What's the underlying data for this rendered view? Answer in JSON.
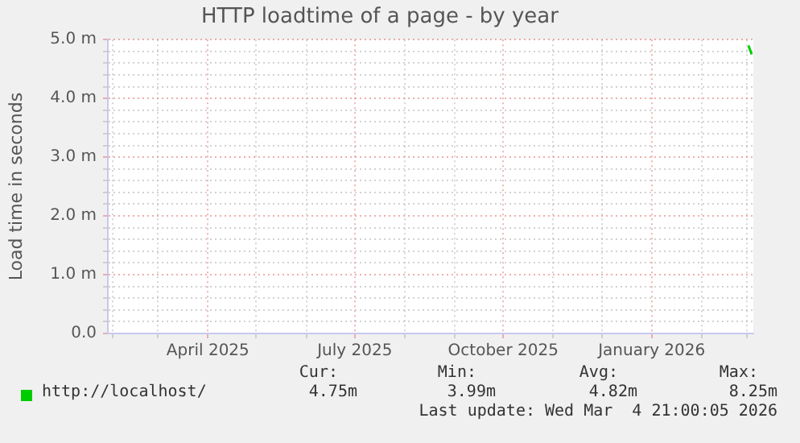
{
  "chart_data": {
    "type": "line",
    "title": "HTTP loadtime of a page - by year",
    "ylabel": "Load time in seconds",
    "x": [
      "2026-03-02",
      "2026-03-04"
    ],
    "series": [
      {
        "name": "http://localhost/",
        "color": "#00cc00",
        "values": [
          4.9,
          4.75
        ]
      }
    ],
    "xlim": [
      "2025-01-29",
      "2026-03-05"
    ],
    "xticks": [
      {
        "value": "2025-02-01",
        "label": null
      },
      {
        "value": "2025-03-01",
        "label": null
      },
      {
        "value": "2025-04-01",
        "label": "April 2025"
      },
      {
        "value": "2025-05-01",
        "label": null
      },
      {
        "value": "2025-06-01",
        "label": null
      },
      {
        "value": "2025-07-01",
        "label": "July 2025"
      },
      {
        "value": "2025-08-01",
        "label": null
      },
      {
        "value": "2025-09-01",
        "label": null
      },
      {
        "value": "2025-10-01",
        "label": "October 2025"
      },
      {
        "value": "2025-11-01",
        "label": null
      },
      {
        "value": "2025-12-01",
        "label": null
      },
      {
        "value": "2026-01-01",
        "label": "January 2026"
      },
      {
        "value": "2026-02-01",
        "label": null
      },
      {
        "value": "2026-03-01",
        "label": null
      }
    ],
    "ylim": [
      0,
      5
    ],
    "yticks": [
      {
        "value": 0,
        "label": "0.0"
      },
      {
        "value": 0.2,
        "label": null
      },
      {
        "value": 0.4,
        "label": null
      },
      {
        "value": 0.6,
        "label": null
      },
      {
        "value": 0.8,
        "label": null
      },
      {
        "value": 1,
        "label": "1.0 m"
      },
      {
        "value": 1.2,
        "label": null
      },
      {
        "value": 1.4,
        "label": null
      },
      {
        "value": 1.6,
        "label": null
      },
      {
        "value": 1.8,
        "label": null
      },
      {
        "value": 2,
        "label": "2.0 m"
      },
      {
        "value": 2.2,
        "label": null
      },
      {
        "value": 2.4,
        "label": null
      },
      {
        "value": 2.6,
        "label": null
      },
      {
        "value": 2.8,
        "label": null
      },
      {
        "value": 3,
        "label": "3.0 m"
      },
      {
        "value": 3.2,
        "label": null
      },
      {
        "value": 3.4,
        "label": null
      },
      {
        "value": 3.6,
        "label": null
      },
      {
        "value": 3.8,
        "label": null
      },
      {
        "value": 4,
        "label": "4.0 m"
      },
      {
        "value": 4.2,
        "label": null
      },
      {
        "value": 4.4,
        "label": null
      },
      {
        "value": 4.6,
        "label": null
      },
      {
        "value": 4.8,
        "label": null
      },
      {
        "value": 5,
        "label": "5.0 m"
      }
    ],
    "grid": true,
    "marker": "none",
    "legend": "bottom left",
    "annotations": [
      "Cur:",
      "Min:",
      "Avg:",
      "Max:",
      "4.75m",
      "3.99m",
      "4.82m",
      "8.25m",
      "Last update: Wed Mar  4 21:00:05 2026"
    ]
  }
}
